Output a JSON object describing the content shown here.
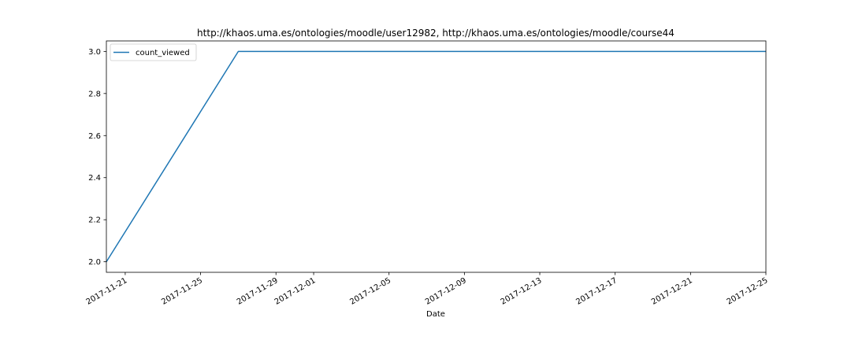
{
  "chart_data": {
    "type": "line",
    "title": "http://khaos.uma.es/ontologies/moodle/user12982, http://khaos.uma.es/ontologies/moodle/course44",
    "xlabel": "Date",
    "ylabel": "",
    "x_type": "date",
    "xlim": [
      "2017-11-20",
      "2017-12-25"
    ],
    "ylim": [
      1.95,
      3.05
    ],
    "x_ticks": [
      "2017-11-21",
      "2017-11-25",
      "2017-11-29",
      "2017-12-01",
      "2017-12-05",
      "2017-12-09",
      "2017-12-13",
      "2017-12-17",
      "2017-12-21",
      "2017-12-25"
    ],
    "y_ticks": [
      2.0,
      2.2,
      2.4,
      2.6,
      2.8,
      3.0
    ],
    "y_tick_labels": [
      "2.0",
      "2.2",
      "2.4",
      "2.6",
      "2.8",
      "3.0"
    ],
    "grid": false,
    "legend_position": "top-left",
    "series": [
      {
        "name": "count_viewed",
        "color": "#1f77b4",
        "x": [
          "2017-11-20",
          "2017-11-27",
          "2017-12-25"
        ],
        "y": [
          2.0,
          3.0,
          3.0
        ]
      }
    ]
  }
}
